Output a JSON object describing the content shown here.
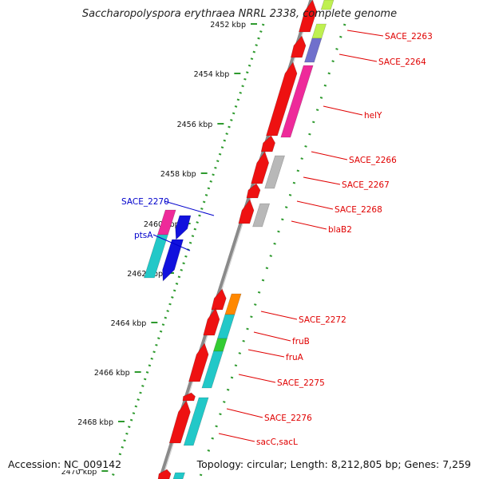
{
  "title": "Saccharopolyspora erythraea NRRL 2338, complete genome",
  "accession": "Accession: NC_009142",
  "topology": "Topology: circular; Length: 8,212,805 bp; Genes: 7,259",
  "axis": {
    "ticks": [
      {
        "label": "2452 kbp"
      },
      {
        "label": "2454 kbp"
      },
      {
        "label": "2456 kbp"
      },
      {
        "label": "2458 kbp"
      },
      {
        "label": "2460 kbp"
      },
      {
        "label": "2462 kbp"
      },
      {
        "label": "2464 kbp"
      },
      {
        "label": "2466 kbp"
      },
      {
        "label": "2468 kbp"
      },
      {
        "label": "2470 kbp"
      }
    ]
  },
  "gene_labels": [
    {
      "text": "SACE_2263",
      "strand": "forward",
      "color": "#e00000"
    },
    {
      "text": "SACE_2264",
      "strand": "forward",
      "color": "#e00000"
    },
    {
      "text": "helY",
      "strand": "forward",
      "color": "#e00000"
    },
    {
      "text": "SACE_2266",
      "strand": "forward",
      "color": "#e00000"
    },
    {
      "text": "SACE_2267",
      "strand": "forward",
      "color": "#e00000"
    },
    {
      "text": "SACE_2268",
      "strand": "forward",
      "color": "#e00000"
    },
    {
      "text": "blaB2",
      "strand": "forward",
      "color": "#e00000"
    },
    {
      "text": "SACE_2270",
      "strand": "reverse",
      "color": "#0000cc"
    },
    {
      "text": "ptsA",
      "strand": "reverse",
      "color": "#0000cc"
    },
    {
      "text": "SACE_2272",
      "strand": "forward",
      "color": "#e00000"
    },
    {
      "text": "fruB",
      "strand": "forward",
      "color": "#e00000"
    },
    {
      "text": "fruA",
      "strand": "forward",
      "color": "#e00000"
    },
    {
      "text": "SACE_2275",
      "strand": "forward",
      "color": "#e00000"
    },
    {
      "text": "SACE_2276",
      "strand": "forward",
      "color": "#e00000"
    },
    {
      "text": "sacC,sacL",
      "strand": "forward",
      "color": "#e00000"
    }
  ],
  "colors": {
    "forward_cds": "#ee1111",
    "reverse_cds": "#1111dd",
    "backbone": "#8a8a8a",
    "tick_dots": "#2e9a2e",
    "cog_magenta": "#ee2a9a",
    "cog_cyan": "#22c8c8",
    "cog_gray": "#b8b8b8",
    "cog_lime": "#bff050",
    "cog_slate": "#7070cc",
    "cog_orange": "#ff8800",
    "cog_green": "#33cc33"
  }
}
